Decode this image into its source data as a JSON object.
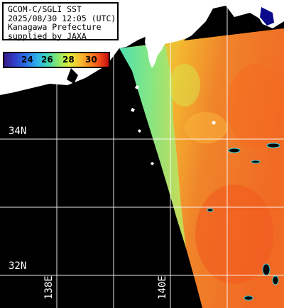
{
  "info": {
    "line1": "GCOM-C/SGLI SST",
    "line2": "2025/08/30 12:05 (UTC)",
    "line3": "Kanagawa Prefecture",
    "line4": "supplied by JAXA"
  },
  "colorbar": {
    "labels": [
      "24",
      "26",
      "28",
      "30"
    ]
  },
  "gridlabels": {
    "lat_34": "34N",
    "lat_32": "32N",
    "lon_138": "138E",
    "lon_140": "140E"
  },
  "colors": {
    "land": "#ffffff",
    "no_data": "#000000",
    "grid": "#ffffff",
    "sst_warm": "#f07a22",
    "sst_cool": "#7ee88a"
  }
}
